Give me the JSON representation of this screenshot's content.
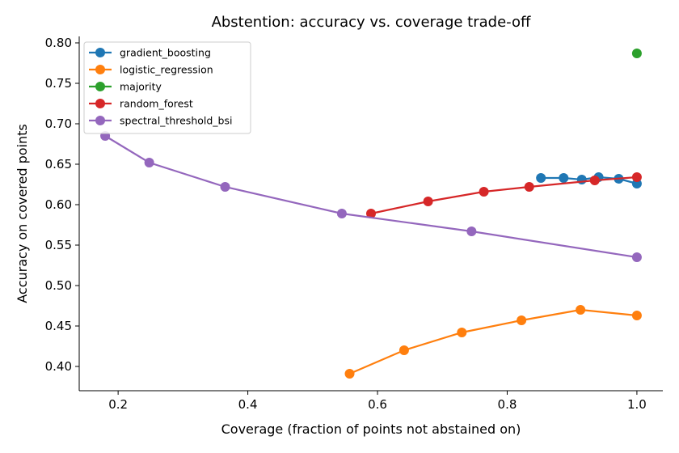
{
  "chart_data": {
    "type": "line",
    "title": "Abstention: accuracy vs. coverage trade-off",
    "xlabel": "Coverage (fraction of points not abstained on)",
    "ylabel": "Accuracy on covered points",
    "xlim": [
      0.14,
      1.04
    ],
    "ylim": [
      0.37,
      0.808
    ],
    "xticks": [
      0.2,
      0.4,
      0.6,
      0.8,
      1.0
    ],
    "xtick_labels": [
      "0.2",
      "0.4",
      "0.6",
      "0.8",
      "1.0"
    ],
    "yticks": [
      0.4,
      0.45,
      0.5,
      0.55,
      0.6,
      0.65,
      0.7,
      0.75,
      0.8
    ],
    "ytick_labels": [
      "0.40",
      "0.45",
      "0.50",
      "0.55",
      "0.60",
      "0.65",
      "0.70",
      "0.75",
      "0.80"
    ],
    "grid": false,
    "legend_position": "top-left",
    "series": [
      {
        "name": "gradient_boosting",
        "color": "#1f77b4",
        "points": [
          [
            0.852,
            0.633
          ],
          [
            0.887,
            0.633
          ],
          [
            0.915,
            0.631
          ],
          [
            0.941,
            0.634
          ],
          [
            0.972,
            0.632
          ],
          [
            1.0,
            0.626
          ]
        ]
      },
      {
        "name": "logistic_regression",
        "color": "#ff7f0e",
        "points": [
          [
            0.557,
            0.391
          ],
          [
            0.641,
            0.42
          ],
          [
            0.73,
            0.442
          ],
          [
            0.822,
            0.457
          ],
          [
            0.913,
            0.47
          ],
          [
            1.0,
            0.463
          ]
        ]
      },
      {
        "name": "majority",
        "color": "#2ca02c",
        "points": [
          [
            1.0,
            0.787
          ]
        ]
      },
      {
        "name": "random_forest",
        "color": "#d62728",
        "points": [
          [
            0.59,
            0.589
          ],
          [
            0.678,
            0.604
          ],
          [
            0.764,
            0.616
          ],
          [
            0.834,
            0.622
          ],
          [
            0.935,
            0.63
          ],
          [
            1.0,
            0.634
          ]
        ]
      },
      {
        "name": "spectral_threshold_bsi",
        "color": "#9467bd",
        "points": [
          [
            0.18,
            0.685
          ],
          [
            0.248,
            0.652
          ],
          [
            0.365,
            0.622
          ],
          [
            0.545,
            0.589
          ],
          [
            0.745,
            0.567
          ],
          [
            1.0,
            0.535
          ]
        ]
      }
    ]
  }
}
